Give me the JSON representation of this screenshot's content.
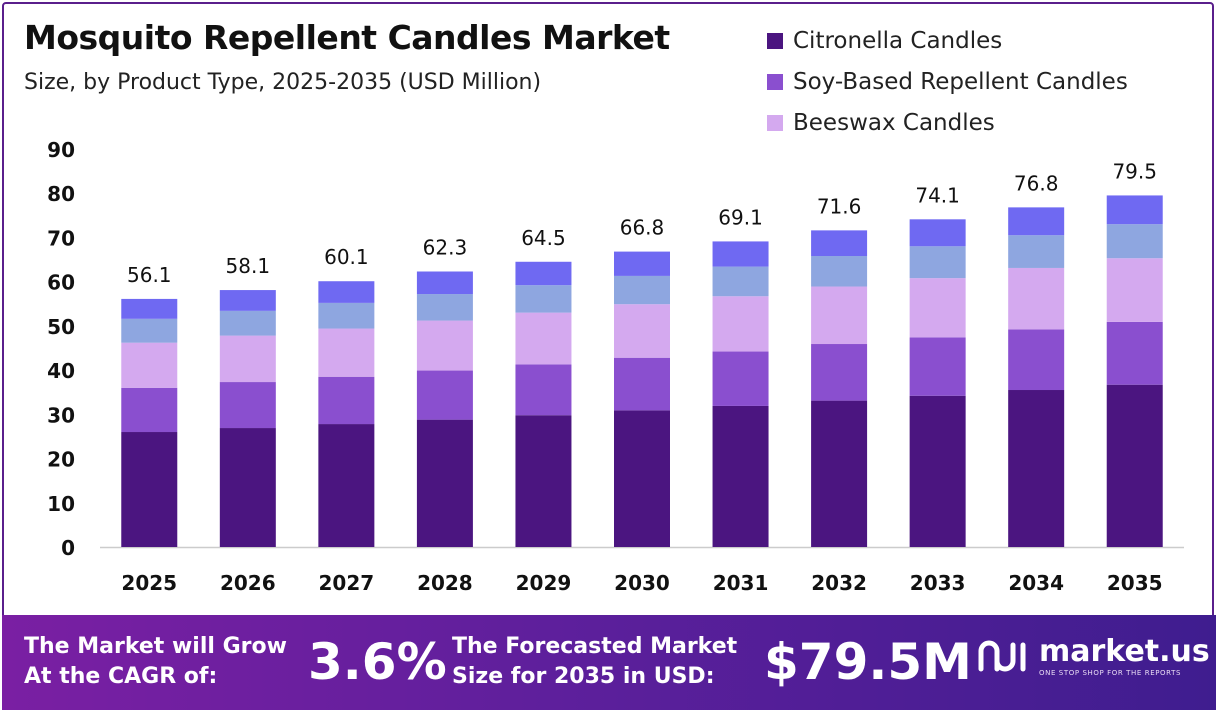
{
  "chart_data": {
    "type": "bar",
    "stacked": true,
    "title": "Mosquito Repellent Candles Market",
    "subtitle": "Size, by Product Type, 2025-2035 (USD Million)",
    "categories": [
      "2025",
      "2026",
      "2027",
      "2028",
      "2029",
      "2030",
      "2031",
      "2032",
      "2033",
      "2034",
      "2035"
    ],
    "totals": [
      56.1,
      58.1,
      60.1,
      62.3,
      64.5,
      66.8,
      69.1,
      71.6,
      74.1,
      76.8,
      79.5
    ],
    "total_labels": [
      "56.1",
      "58.1",
      "60.1",
      "62.3",
      "64.5",
      "66.8",
      "69.1",
      "71.6",
      "74.1",
      "76.8",
      "79.5"
    ],
    "series": [
      {
        "name": "Citronella Candles",
        "color": "#4b1580",
        "values": [
          26.0,
          26.9,
          27.8,
          28.8,
          29.8,
          30.9,
          31.9,
          33.1,
          34.2,
          35.5,
          36.7
        ]
      },
      {
        "name": "Soy-Based Repellent Candles",
        "color": "#8a4fcf",
        "values": [
          10.0,
          10.4,
          10.7,
          11.1,
          11.5,
          11.9,
          12.3,
          12.8,
          13.2,
          13.7,
          14.2
        ]
      },
      {
        "name": "Beeswax Candles",
        "color": "#d4a9ef",
        "values": [
          10.2,
          10.5,
          10.9,
          11.3,
          11.7,
          12.1,
          12.5,
          13.0,
          13.4,
          13.9,
          14.4
        ]
      },
      {
        "values": [
          5.4,
          5.6,
          5.8,
          6.0,
          6.2,
          6.4,
          6.7,
          6.9,
          7.2,
          7.4,
          7.7
        ],
        "color": "#8ea6e0"
      },
      {
        "values": [
          4.5,
          4.7,
          4.9,
          5.1,
          5.3,
          5.5,
          5.7,
          5.8,
          6.1,
          6.3,
          6.5
        ],
        "color": "#6f69f2"
      }
    ],
    "ylim": [
      0,
      90
    ],
    "yticks": [
      0,
      10,
      20,
      30,
      40,
      50,
      60,
      70,
      80,
      90
    ],
    "grid": false,
    "legend_position": "top-right"
  },
  "banner": {
    "cagr_label": "The Market will Grow\nAt the CAGR of:",
    "cagr_value": "3.6%",
    "size_label": "The Forecasted Market\nSize for 2035 in USD:",
    "size_value": "$79.5M",
    "brand_name": "market.us",
    "brand_tagline": "ONE STOP SHOP FOR THE REPORTS"
  },
  "colors": {
    "frame": "#5a1f8c",
    "banner_start": "#7a1fa3",
    "banner_end": "#3f1d8f"
  }
}
